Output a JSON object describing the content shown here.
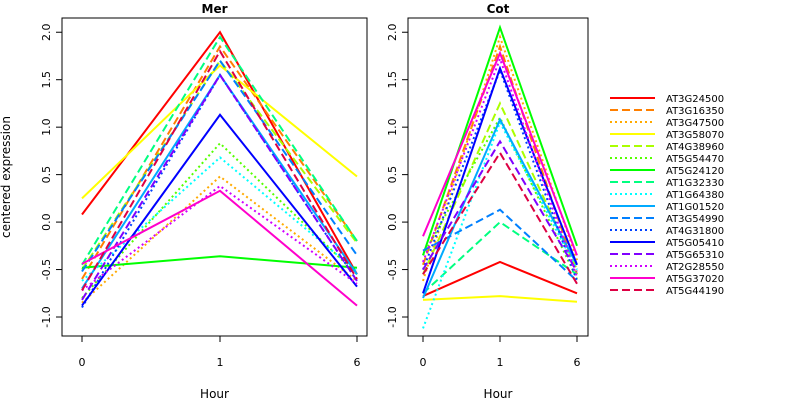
{
  "ylabel": "centered expression",
  "chart_data": [
    {
      "type": "line",
      "title": "Mer",
      "xlabel": "Hour",
      "ylabel": "centered expression",
      "categories": [
        "0",
        "1",
        "6"
      ],
      "ylim": [
        -1.2,
        2.15
      ],
      "yticks": [
        "-1.0",
        "-0.5",
        "0.0",
        "0.5",
        "1.0",
        "1.5",
        "2.0"
      ],
      "grid": false,
      "legend": "right",
      "series": [
        {
          "name": "AT3G24500",
          "color": "#ff0000",
          "dash": "solid",
          "values": [
            0.08,
            2.0,
            -0.55
          ]
        },
        {
          "name": "AT3G16350",
          "color": "#ff7f00",
          "dash": "dashed",
          "values": [
            -0.6,
            1.85,
            -0.2
          ]
        },
        {
          "name": "AT3G47500",
          "color": "#ffaa00",
          "dash": "dotted",
          "values": [
            -0.85,
            0.48,
            -0.62
          ]
        },
        {
          "name": "AT3G58070",
          "color": "#ffff00",
          "dash": "solid",
          "values": [
            0.25,
            1.65,
            0.48
          ]
        },
        {
          "name": "AT4G38960",
          "color": "#aaff00",
          "dash": "dashed",
          "values": [
            -0.5,
            1.7,
            -0.22
          ]
        },
        {
          "name": "AT5G54470",
          "color": "#55ff00",
          "dash": "dotted",
          "values": [
            -0.8,
            0.83,
            -0.55
          ]
        },
        {
          "name": "AT5G24120",
          "color": "#00ff00",
          "dash": "solid",
          "values": [
            -0.48,
            -0.36,
            -0.48
          ]
        },
        {
          "name": "AT1G32330",
          "color": "#00ff80",
          "dash": "dashed",
          "values": [
            -0.45,
            1.95,
            -0.2
          ]
        },
        {
          "name": "AT1G64380",
          "color": "#00ffff",
          "dash": "dotted",
          "values": [
            -0.62,
            0.68,
            -0.52
          ]
        },
        {
          "name": "AT1G01520",
          "color": "#00aaff",
          "dash": "solid",
          "values": [
            -0.7,
            1.55,
            -0.55
          ]
        },
        {
          "name": "AT3G54990",
          "color": "#0080ff",
          "dash": "dashed",
          "values": [
            -0.52,
            1.7,
            -0.35
          ]
        },
        {
          "name": "AT4G31800",
          "color": "#0040ff",
          "dash": "dotted",
          "values": [
            -0.9,
            1.55,
            -0.62
          ]
        },
        {
          "name": "AT5G05410",
          "color": "#0000ff",
          "dash": "solid",
          "values": [
            -0.88,
            1.13,
            -0.68
          ]
        },
        {
          "name": "AT5G65310",
          "color": "#8000ff",
          "dash": "dashed",
          "values": [
            -0.82,
            1.55,
            -0.62
          ]
        },
        {
          "name": "AT2G28550",
          "color": "#d000ff",
          "dash": "dotted",
          "values": [
            -0.72,
            0.38,
            -0.65
          ]
        },
        {
          "name": "AT5G37020",
          "color": "#ff00cc",
          "dash": "solid",
          "values": [
            -0.44,
            0.33,
            -0.88
          ]
        },
        {
          "name": "AT5G44190",
          "color": "#dd0044",
          "dash": "dashed",
          "values": [
            -0.72,
            1.8,
            -0.6
          ]
        }
      ]
    },
    {
      "type": "line",
      "title": "Cot",
      "xlabel": "Hour",
      "ylabel": "",
      "categories": [
        "0",
        "1",
        "6"
      ],
      "ylim": [
        -1.2,
        2.15
      ],
      "yticks": [
        "-1.0",
        "-0.5",
        "0.0",
        "0.5",
        "1.0",
        "1.5",
        "2.0"
      ],
      "grid": false,
      "series": [
        {
          "name": "AT3G24500",
          "color": "#ff0000",
          "dash": "solid",
          "values": [
            -0.78,
            -0.42,
            -0.75
          ]
        },
        {
          "name": "AT3G16350",
          "color": "#ff7f00",
          "dash": "dashed",
          "values": [
            -0.45,
            1.85,
            -0.55
          ]
        },
        {
          "name": "AT3G47500",
          "color": "#ffaa00",
          "dash": "dotted",
          "values": [
            -0.62,
            1.95,
            -0.4
          ]
        },
        {
          "name": "AT3G58070",
          "color": "#ffff00",
          "dash": "solid",
          "values": [
            -0.82,
            -0.78,
            -0.84
          ]
        },
        {
          "name": "AT4G38960",
          "color": "#aaff00",
          "dash": "dashed",
          "values": [
            -0.55,
            1.25,
            -0.5
          ]
        },
        {
          "name": "AT5G54470",
          "color": "#55ff00",
          "dash": "dotted",
          "values": [
            -0.35,
            1.1,
            -0.6
          ]
        },
        {
          "name": "AT5G24120",
          "color": "#00ff00",
          "dash": "solid",
          "values": [
            -0.35,
            2.05,
            -0.25
          ]
        },
        {
          "name": "AT1G32330",
          "color": "#00ff80",
          "dash": "dashed",
          "values": [
            -0.75,
            0.0,
            -0.55
          ]
        },
        {
          "name": "AT1G64380",
          "color": "#00ffff",
          "dash": "dotted",
          "values": [
            -1.12,
            1.05,
            -0.5
          ]
        },
        {
          "name": "AT1G01520",
          "color": "#00aaff",
          "dash": "solid",
          "values": [
            -0.8,
            1.08,
            -0.45
          ]
        },
        {
          "name": "AT3G54990",
          "color": "#0080ff",
          "dash": "dashed",
          "values": [
            -0.3,
            0.13,
            -0.62
          ]
        },
        {
          "name": "AT4G31800",
          "color": "#0040ff",
          "dash": "dotted",
          "values": [
            -0.5,
            1.6,
            -0.62
          ]
        },
        {
          "name": "AT5G05410",
          "color": "#0000ff",
          "dash": "solid",
          "values": [
            -0.75,
            1.62,
            -0.45
          ]
        },
        {
          "name": "AT5G65310",
          "color": "#8000ff",
          "dash": "dashed",
          "values": [
            -0.5,
            0.85,
            -0.52
          ]
        },
        {
          "name": "AT2G28550",
          "color": "#d000ff",
          "dash": "dotted",
          "values": [
            -0.42,
            1.72,
            -0.58
          ]
        },
        {
          "name": "AT5G37020",
          "color": "#ff00cc",
          "dash": "solid",
          "values": [
            -0.15,
            1.78,
            -0.35
          ]
        },
        {
          "name": "AT5G44190",
          "color": "#dd0044",
          "dash": "dashed",
          "values": [
            -0.55,
            0.73,
            -0.65
          ]
        }
      ]
    }
  ]
}
